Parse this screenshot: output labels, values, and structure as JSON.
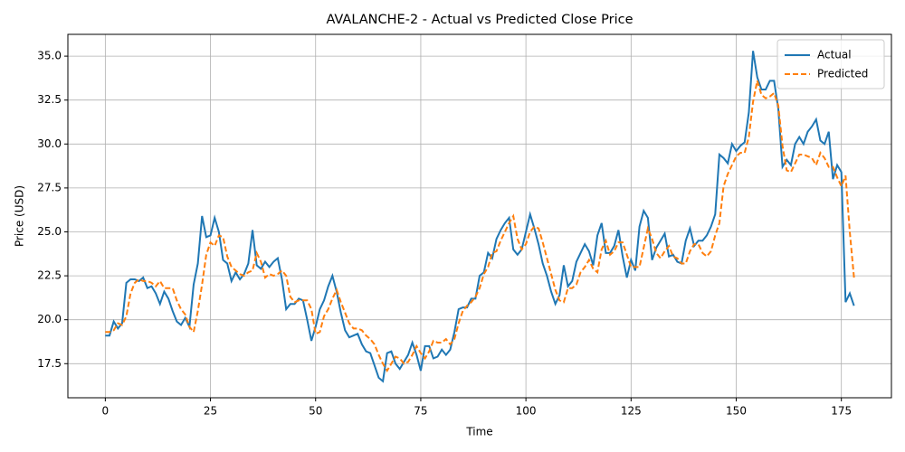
{
  "chart_data": {
    "type": "line",
    "title": "AVALANCHE-2 - Actual vs Predicted Close Price",
    "xlabel": "Time",
    "ylabel": "Price (USD)",
    "x": [
      0,
      1,
      2,
      3,
      4,
      5,
      6,
      7,
      8,
      9,
      10,
      11,
      12,
      13,
      14,
      15,
      16,
      17,
      18,
      19,
      20,
      21,
      22,
      23,
      24,
      25,
      26,
      27,
      28,
      29,
      30,
      31,
      32,
      33,
      34,
      35,
      36,
      37,
      38,
      39,
      40,
      41,
      42,
      43,
      44,
      45,
      46,
      47,
      48,
      49,
      50,
      51,
      52,
      53,
      54,
      55,
      56,
      57,
      58,
      59,
      60,
      61,
      62,
      63,
      64,
      65,
      66,
      67,
      68,
      69,
      70,
      71,
      72,
      73,
      74,
      75,
      76,
      77,
      78,
      79,
      80,
      81,
      82,
      83,
      84,
      85,
      86,
      87,
      88,
      89,
      90,
      91,
      92,
      93,
      94,
      95,
      96,
      97,
      98,
      99,
      100,
      101,
      102,
      103,
      104,
      105,
      106,
      107,
      108,
      109,
      110,
      111,
      112,
      113,
      114,
      115,
      116,
      117,
      118,
      119,
      120,
      121,
      122,
      123,
      124,
      125,
      126,
      127,
      128,
      129,
      130,
      131,
      132,
      133,
      134,
      135,
      136,
      137,
      138,
      139,
      140,
      141,
      142,
      143,
      144,
      145,
      146,
      147,
      148,
      149,
      150,
      151,
      152,
      153,
      154,
      155,
      156,
      157,
      158,
      159,
      160,
      161,
      162,
      163,
      164,
      165,
      166,
      167,
      168,
      169,
      170,
      171,
      172,
      173,
      174,
      175,
      176,
      177,
      178
    ],
    "series": [
      {
        "name": "Actual",
        "color": "#1f77b4",
        "linestyle": "solid",
        "values": [
          19.1,
          19.1,
          19.9,
          19.5,
          19.8,
          22.1,
          22.3,
          22.3,
          22.2,
          22.4,
          21.8,
          21.9,
          21.5,
          20.9,
          21.6,
          21.2,
          20.5,
          19.9,
          19.7,
          20.1,
          19.6,
          22.0,
          23.2,
          25.9,
          24.7,
          24.8,
          25.8,
          25.0,
          23.4,
          23.2,
          22.2,
          22.7,
          22.3,
          22.6,
          23.2,
          25.1,
          23.1,
          22.9,
          23.3,
          23.0,
          23.3,
          23.5,
          22.3,
          20.6,
          20.9,
          20.9,
          21.2,
          21.1,
          20.0,
          18.8,
          19.6,
          20.6,
          21.1,
          21.9,
          22.5,
          21.6,
          20.4,
          19.4,
          19.0,
          19.1,
          19.2,
          18.6,
          18.2,
          18.1,
          17.4,
          16.7,
          16.5,
          18.1,
          18.2,
          17.5,
          17.2,
          17.6,
          18.0,
          18.7,
          18.0,
          17.1,
          18.5,
          18.5,
          17.8,
          17.9,
          18.3,
          18.0,
          18.3,
          19.3,
          20.6,
          20.7,
          20.7,
          21.2,
          21.2,
          22.5,
          22.7,
          23.8,
          23.5,
          24.6,
          25.1,
          25.5,
          25.8,
          24.0,
          23.7,
          24.0,
          25.0,
          26.0,
          25.2,
          24.3,
          23.2,
          22.5,
          21.6,
          20.9,
          21.4,
          23.1,
          21.9,
          22.2,
          23.3,
          23.8,
          24.3,
          23.9,
          23.1,
          24.8,
          25.5,
          23.8,
          23.8,
          24.2,
          25.1,
          23.6,
          22.4,
          23.4,
          22.8,
          25.3,
          26.2,
          25.8,
          23.4,
          24.1,
          24.5,
          24.9,
          23.6,
          23.7,
          23.3,
          23.2,
          24.5,
          25.2,
          24.2,
          24.5,
          24.5,
          24.8,
          25.3,
          26.0,
          29.4,
          29.2,
          28.9,
          30.0,
          29.6,
          29.9,
          30.1,
          31.8,
          35.3,
          33.8,
          33.1,
          33.1,
          33.6,
          33.6,
          32.0,
          28.7,
          29.1,
          28.8,
          30.0,
          30.4,
          30.0,
          30.7,
          31.0,
          31.4,
          30.2,
          30.0,
          30.7,
          28.0,
          28.8,
          28.4,
          21.0,
          21.5,
          20.8
        ]
      },
      {
        "name": "Predicted",
        "color": "#ff7f0e",
        "linestyle": "dashed",
        "values": [
          19.3,
          19.3,
          19.4,
          19.8,
          19.7,
          20.2,
          21.5,
          22.1,
          22.3,
          22.2,
          22.2,
          22.1,
          21.9,
          22.2,
          21.8,
          21.8,
          21.8,
          21.1,
          20.6,
          20.3,
          19.6,
          19.3,
          20.5,
          22.0,
          23.7,
          24.4,
          24.2,
          24.8,
          24.7,
          23.6,
          23.0,
          22.8,
          22.6,
          22.5,
          22.7,
          22.8,
          23.8,
          23.3,
          22.4,
          22.6,
          22.5,
          22.6,
          22.8,
          22.5,
          21.3,
          21.0,
          21.1,
          21.1,
          21.1,
          20.6,
          19.2,
          19.3,
          20.2,
          20.6,
          21.2,
          21.7,
          21.0,
          20.4,
          19.8,
          19.5,
          19.5,
          19.4,
          19.1,
          18.9,
          18.6,
          18.0,
          17.5,
          17.1,
          17.5,
          17.9,
          17.8,
          17.5,
          17.6,
          18.0,
          18.5,
          18.1,
          17.8,
          18.2,
          18.8,
          18.7,
          18.7,
          18.9,
          18.6,
          18.9,
          19.8,
          20.5,
          20.8,
          21.0,
          21.3,
          21.8,
          22.6,
          23.0,
          23.8,
          23.9,
          24.5,
          25.0,
          25.5,
          25.9,
          24.6,
          24.0,
          24.3,
          25.0,
          25.3,
          25.2,
          24.4,
          23.5,
          22.6,
          21.7,
          21.1,
          21.0,
          21.8,
          21.8,
          22.0,
          22.7,
          23.0,
          23.4,
          22.9,
          22.7,
          24.0,
          24.5,
          23.7,
          23.9,
          24.4,
          24.4,
          23.7,
          23.0,
          23.0,
          23.0,
          24.1,
          25.2,
          24.6,
          23.8,
          23.5,
          23.9,
          24.2,
          23.6,
          23.5,
          23.2,
          23.2,
          23.9,
          24.3,
          24.3,
          23.8,
          23.6,
          23.9,
          24.8,
          25.5,
          27.6,
          28.3,
          28.8,
          29.3,
          29.5,
          29.5,
          30.4,
          32.4,
          33.6,
          32.8,
          32.6,
          32.7,
          32.9,
          32.2,
          29.9,
          28.5,
          28.4,
          28.9,
          29.4,
          29.4,
          29.3,
          29.2,
          28.8,
          29.5,
          29.2,
          28.7,
          28.7,
          28.1,
          27.6,
          28.2,
          25.0,
          22.4
        ]
      }
    ],
    "xlim": [
      -8.9,
      186.9
    ],
    "ylim": [
      15.56,
      36.24
    ],
    "xticks": [
      0,
      25,
      50,
      75,
      100,
      125,
      150,
      175
    ],
    "yticks": [
      17.5,
      {
        "value": 20,
        "label": "20.0"
      },
      22.5,
      {
        "value": 25,
        "label": "25.0"
      },
      27.5,
      {
        "value": 30,
        "label": "30.0"
      },
      32.5,
      {
        "value": 35,
        "label": "35.0"
      }
    ],
    "grid": true,
    "legend": "upper right"
  }
}
